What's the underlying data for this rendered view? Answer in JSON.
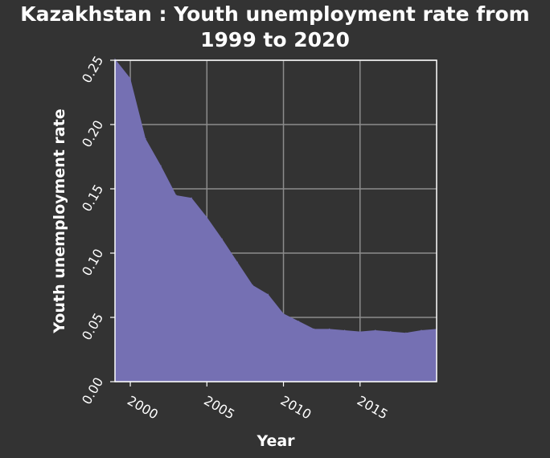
{
  "colors": {
    "background": "#333333",
    "area_fill": "#7570b3",
    "grid": "#8c8c8c",
    "text": "#ffffff",
    "frame": "#ffffff"
  },
  "chart_data": {
    "type": "area",
    "title_lines": [
      "Kazakhstan : Youth unemployment rate from",
      "1999 to 2020"
    ],
    "xlabel": "Year",
    "ylabel": "Youth unemployment rate",
    "xlim": [
      1999,
      2020
    ],
    "ylim": [
      0,
      0.25
    ],
    "grid": true,
    "x_ticks": [
      {
        "value": 2000,
        "label": "2000"
      },
      {
        "value": 2005,
        "label": "2005"
      },
      {
        "value": 2010,
        "label": "2010"
      },
      {
        "value": 2015,
        "label": "2015"
      }
    ],
    "y_ticks": [
      {
        "value": 0.0,
        "label": "0.00"
      },
      {
        "value": 0.05,
        "label": "0.05"
      },
      {
        "value": 0.1,
        "label": "0.10"
      },
      {
        "value": 0.15,
        "label": "0.15"
      },
      {
        "value": 0.2,
        "label": "0.20"
      },
      {
        "value": 0.25,
        "label": "0.25"
      }
    ],
    "x": [
      1999,
      2000,
      2001,
      2002,
      2003,
      2004,
      2005,
      2006,
      2007,
      2008,
      2009,
      2010,
      2011,
      2012,
      2013,
      2014,
      2015,
      2016,
      2017,
      2018,
      2019,
      2020
    ],
    "series": [
      {
        "values": [
          0.251,
          0.236,
          0.189,
          0.168,
          0.145,
          0.143,
          0.128,
          0.111,
          0.093,
          0.075,
          0.068,
          0.053,
          0.047,
          0.041,
          0.041,
          0.04,
          0.039,
          0.04,
          0.039,
          0.038,
          0.04,
          0.041
        ]
      }
    ]
  }
}
